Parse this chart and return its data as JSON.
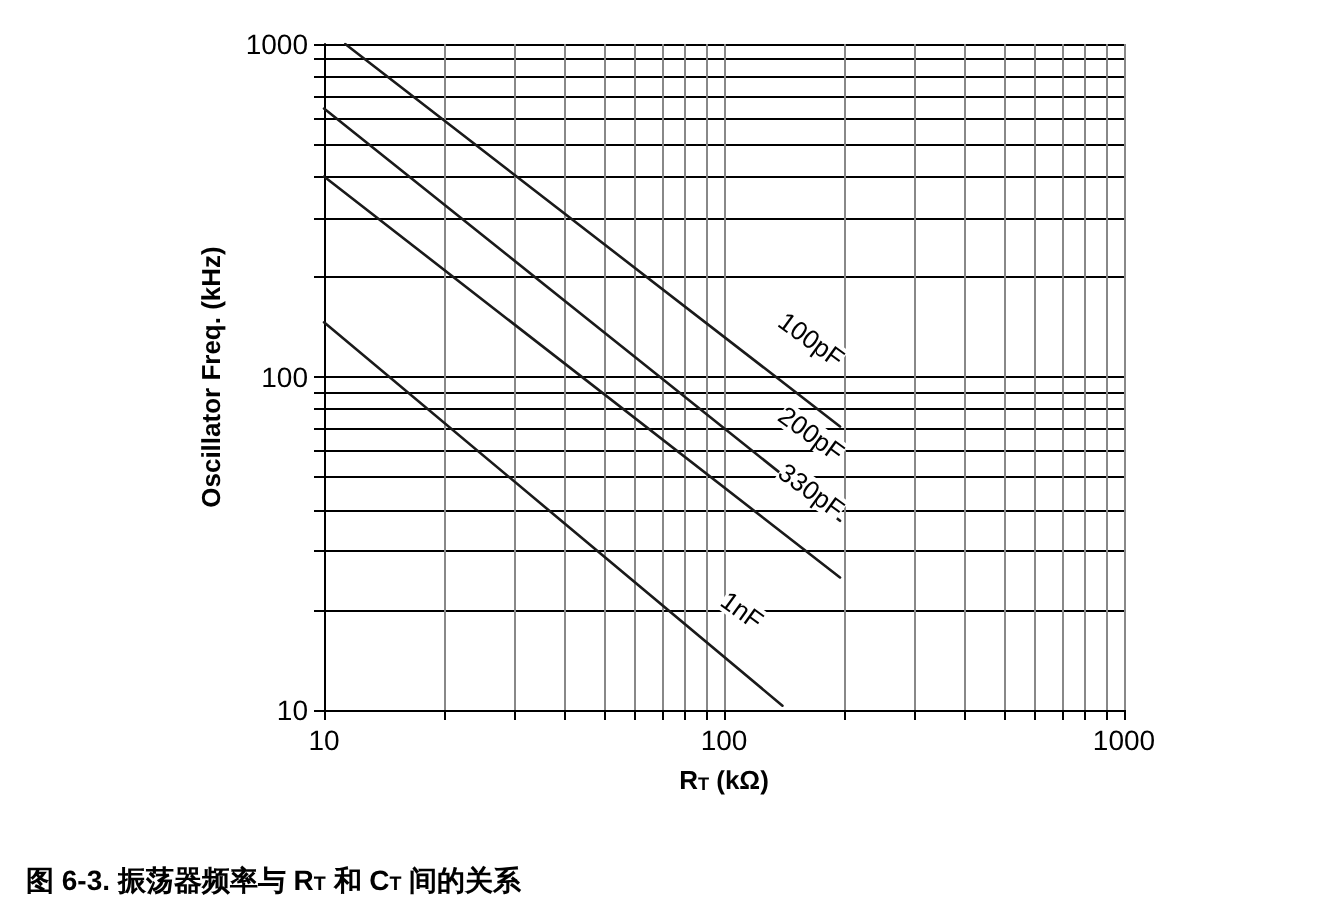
{
  "chart_data": {
    "type": "line",
    "title": "图 6-3. 振荡器频率与 R$_{T}$ 和 C$_{T}$ 间的关系",
    "xlabel": "R$_{T}$ (kΩ)",
    "ylabel": "Oscillator Freq. (kHz)",
    "log": "xy",
    "grid": true,
    "legend": false,
    "marker": "none",
    "line_style": "solid",
    "xlim": [
      10,
      1000
    ],
    "ylim": [
      10,
      1000
    ],
    "xticks": [
      10,
      {
        "value": 20,
        "label": null
      },
      {
        "value": 30,
        "label": null
      },
      {
        "value": 40,
        "label": null
      },
      {
        "value": 50,
        "label": null
      },
      {
        "value": 60,
        "label": null
      },
      {
        "value": 70,
        "label": null
      },
      {
        "value": 80,
        "label": null
      },
      {
        "value": 90,
        "label": null
      },
      100,
      {
        "value": 200,
        "label": null
      },
      {
        "value": 300,
        "label": null
      },
      {
        "value": 400,
        "label": null
      },
      {
        "value": 500,
        "label": null
      },
      {
        "value": 600,
        "label": null
      },
      {
        "value": 700,
        "label": null
      },
      {
        "value": 800,
        "label": null
      },
      {
        "value": 900,
        "label": null
      },
      1000
    ],
    "yticks": [
      10,
      {
        "value": 20,
        "label": null
      },
      {
        "value": 30,
        "label": null
      },
      {
        "value": 40,
        "label": null
      },
      {
        "value": 50,
        "label": null
      },
      {
        "value": 60,
        "label": null
      },
      {
        "value": 70,
        "label": null
      },
      {
        "value": 80,
        "label": null
      },
      {
        "value": 90,
        "label": null
      },
      100,
      {
        "value": 200,
        "label": null
      },
      {
        "value": 300,
        "label": null
      },
      {
        "value": 400,
        "label": null
      },
      {
        "value": 500,
        "label": null
      },
      {
        "value": 600,
        "label": null
      },
      {
        "value": 700,
        "label": null
      },
      {
        "value": 800,
        "label": null
      },
      {
        "value": 900,
        "label": null
      },
      1000
    ],
    "series": [
      {
        "name": "100pF",
        "color": "#1a1a1a",
        "x": [
          11.3,
          195
        ],
        "values": [
          1000,
          71
        ]
      },
      {
        "name": "200pF",
        "color": "#1a1a1a",
        "x": [
          10,
          195
        ],
        "values": [
          640,
          37
        ]
      },
      {
        "name": "330pF",
        "color": "#1a1a1a",
        "x": [
          10,
          195
        ],
        "values": [
          400,
          25
        ]
      },
      {
        "name": "1nF",
        "color": "#1a1a1a",
        "x": [
          10,
          140
        ],
        "values": [
          146,
          10.3
        ]
      }
    ]
  }
}
